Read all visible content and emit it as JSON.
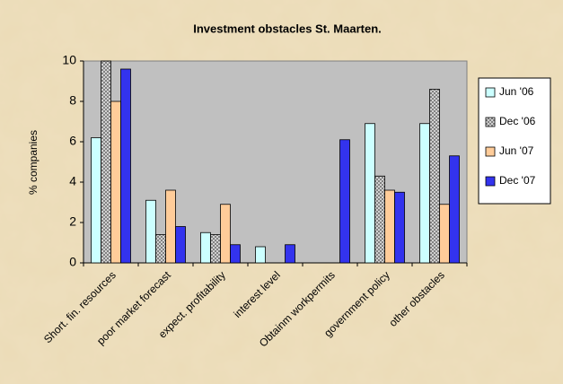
{
  "chart_data": {
    "type": "bar",
    "title": "Investment obstacles St. Maarten.",
    "y_label": "% companies",
    "categories": [
      "Short. fin. resources",
      "poor market forecast",
      "expect. profitability",
      "interest level",
      "Obtainm workpermits",
      "government policy",
      "other obstacles"
    ],
    "series": [
      {
        "name": "Jun '06",
        "color": "#ccffff",
        "values": [
          6.2,
          3.1,
          1.5,
          0.8,
          0,
          6.9,
          6.9
        ]
      },
      {
        "name": "Dec '06",
        "color": "#808080",
        "pattern": "crosshatch",
        "values": [
          10,
          1.4,
          1.4,
          0,
          0,
          4.3,
          8.6
        ]
      },
      {
        "name": "Jun '07",
        "color": "#ffcc99",
        "values": [
          8,
          3.6,
          2.9,
          0,
          0,
          3.6,
          2.9
        ]
      },
      {
        "name": "Dec '07",
        "color": "#3333ee",
        "values": [
          9.6,
          1.8,
          0.9,
          0.9,
          6.1,
          3.5,
          5.3
        ]
      }
    ],
    "ylim": [
      0,
      10
    ],
    "yticks": [
      0,
      2,
      4,
      6,
      8,
      10
    ],
    "grid": false,
    "legend": "right"
  }
}
